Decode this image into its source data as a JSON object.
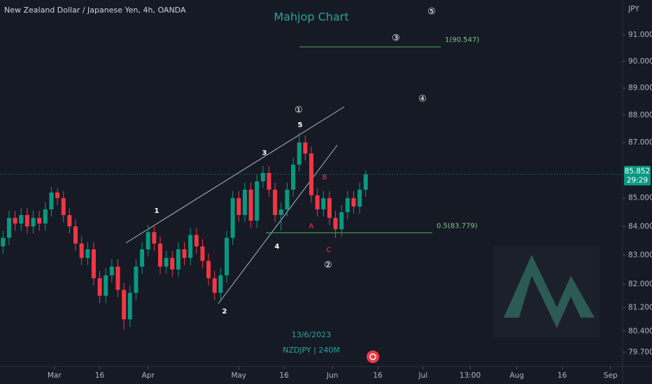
{
  "chart_data": {
    "type": "candlestick",
    "title": "New Zealand Dollar / Japanese Yen, 4h, OANDA",
    "subtitle": "Mahjop Chart",
    "y_axis_label": "JPY",
    "log_scale": true,
    "grid": false,
    "up_color": "#089981",
    "down_color": "#f23645",
    "x": [
      "2023-02-12",
      "2023-02-14",
      "2023-02-16",
      "2023-02-18",
      "2023-02-20",
      "2023-02-22",
      "2023-02-24",
      "2023-02-26",
      "2023-02-28",
      "2023-03-02",
      "2023-03-04",
      "2023-03-06",
      "2023-03-08",
      "2023-03-10",
      "2023-03-12",
      "2023-03-14",
      "2023-03-16",
      "2023-03-18",
      "2023-03-20",
      "2023-03-22",
      "2023-03-24",
      "2023-03-26",
      "2023-03-28",
      "2023-03-30",
      "2023-04-01",
      "2023-04-03",
      "2023-04-05",
      "2023-04-07",
      "2023-04-09",
      "2023-04-11",
      "2023-04-13",
      "2023-04-15",
      "2023-04-17",
      "2023-04-19",
      "2023-04-21",
      "2023-04-23",
      "2023-04-25",
      "2023-04-27",
      "2023-04-29",
      "2023-05-01",
      "2023-05-03",
      "2023-05-05",
      "2023-05-07",
      "2023-05-09",
      "2023-05-11",
      "2023-05-13",
      "2023-05-15",
      "2023-05-17",
      "2023-05-19",
      "2023-05-21",
      "2023-05-23",
      "2023-05-25",
      "2023-05-27",
      "2023-05-29",
      "2023-05-31",
      "2023-06-02",
      "2023-06-04",
      "2023-06-06",
      "2023-06-08",
      "2023-06-10",
      "2023-06-12"
    ],
    "open": [
      83.3,
      83.6,
      84.3,
      84.1,
      84.4,
      84.0,
      84.3,
      84.1,
      84.6,
      85.2,
      85.0,
      84.4,
      84.0,
      83.4,
      82.9,
      83.2,
      82.2,
      81.6,
      82.3,
      82.6,
      81.8,
      80.8,
      81.7,
      82.6,
      83.2,
      83.8,
      83.4,
      82.6,
      82.9,
      82.5,
      83.2,
      82.9,
      83.7,
      83.3,
      82.8,
      82.2,
      81.7,
      82.3,
      83.6,
      85.0,
      84.4,
      85.3,
      84.2,
      85.6,
      85.9,
      85.3,
      84.4,
      84.6,
      85.3,
      86.2,
      87.0,
      86.6,
      85.1,
      84.6,
      85.0,
      84.3,
      83.9,
      84.5,
      85.0,
      84.7,
      85.3
    ],
    "high": [
      83.85,
      84.55,
      84.55,
      84.65,
      84.65,
      84.55,
      84.55,
      84.85,
      85.4,
      85.35,
      85.25,
      84.65,
      84.25,
      83.65,
      83.45,
      83.45,
      82.45,
      82.55,
      82.85,
      82.85,
      82.05,
      81.95,
      82.85,
      83.45,
      84.05,
      84.05,
      83.65,
      83.15,
      83.15,
      83.45,
      83.45,
      83.95,
      83.95,
      83.55,
      83.05,
      82.45,
      82.55,
      83.85,
      85.25,
      85.25,
      85.55,
      85.55,
      85.85,
      86.15,
      86.15,
      85.55,
      84.85,
      85.55,
      86.45,
      87.35,
      87.25,
      86.85,
      85.35,
      85.25,
      85.25,
      84.55,
      84.75,
      85.25,
      85.25,
      85.55,
      86.0
    ],
    "low": [
      83.05,
      83.35,
      83.85,
      83.85,
      83.75,
      83.75,
      83.85,
      83.85,
      84.35,
      84.75,
      84.15,
      83.75,
      83.15,
      82.65,
      82.65,
      81.95,
      81.35,
      81.35,
      82.05,
      81.55,
      80.45,
      80.55,
      81.45,
      82.35,
      82.95,
      83.15,
      82.35,
      82.35,
      82.25,
      82.25,
      82.65,
      82.65,
      83.05,
      82.55,
      81.95,
      81.45,
      81.45,
      82.05,
      83.35,
      84.15,
      84.15,
      83.95,
      83.95,
      85.35,
      85.05,
      84.15,
      83.85,
      84.35,
      85.05,
      85.95,
      86.35,
      84.85,
      84.35,
      84.35,
      84.05,
      83.6,
      83.65,
      84.25,
      84.45,
      84.45,
      85.05
    ],
    "close": [
      83.6,
      84.3,
      84.1,
      84.4,
      84.0,
      84.3,
      84.1,
      84.6,
      85.2,
      85.0,
      84.4,
      84.0,
      83.4,
      82.9,
      83.2,
      82.2,
      81.6,
      82.3,
      82.6,
      81.8,
      80.8,
      81.7,
      82.6,
      83.2,
      83.8,
      83.4,
      82.6,
      82.9,
      82.5,
      83.2,
      82.9,
      83.7,
      83.3,
      82.8,
      82.2,
      81.7,
      82.3,
      83.6,
      85.0,
      84.4,
      85.3,
      84.2,
      85.6,
      85.9,
      85.3,
      84.4,
      84.6,
      85.3,
      86.2,
      87.0,
      86.6,
      85.1,
      84.6,
      85.0,
      84.3,
      83.9,
      84.5,
      85.0,
      84.7,
      85.3,
      85.85
    ],
    "xlim": [
      "2023-02-11",
      "2023-09-05"
    ],
    "xticks": [
      {
        "value": "2023-03-01",
        "label": "Mar"
      },
      {
        "value": "2023-03-16",
        "label": "16"
      },
      {
        "value": "2023-04-01",
        "label": "Apr"
      },
      {
        "value": "2023-05-01",
        "label": "May"
      },
      {
        "value": "2023-05-16",
        "label": "16"
      },
      {
        "value": "2023-06-01",
        "label": "Jun"
      },
      {
        "value": "2023-06-16",
        "label": "16"
      },
      {
        "value": "2023-07-01",
        "label": "Jul"
      },
      {
        "value": "2023-07-16T13:00",
        "label": "13:00"
      },
      {
        "value": "2023-08-01",
        "label": "Aug"
      },
      {
        "value": "2023-08-16",
        "label": "16"
      },
      {
        "value": "2023-09-01",
        "label": "Sep"
      }
    ],
    "ylim": [
      79.22,
      92.34
    ],
    "yticks": [
      {
        "value": 91,
        "label": "91.000"
      },
      {
        "value": 90,
        "label": "90.000"
      },
      {
        "value": 89,
        "label": "89.000"
      },
      {
        "value": 88,
        "label": "88.000"
      },
      {
        "value": 87,
        "label": "87.000"
      },
      {
        "value": 85,
        "label": "85.000"
      },
      {
        "value": 84,
        "label": "84.000"
      },
      {
        "value": 83,
        "label": "83.000"
      },
      {
        "value": 82,
        "label": "82.000"
      },
      {
        "value": 81.2,
        "label": "81.200"
      },
      {
        "value": 80.4,
        "label": "80.400"
      },
      {
        "value": 79.7,
        "label": "79.700"
      }
    ],
    "last_price": 85.852,
    "countdown": "29:29",
    "fib_levels": [
      {
        "value": 90.547,
        "label": "1(90.547)"
      },
      {
        "value": 83.779,
        "label": "0.5(83.779)"
      }
    ],
    "wave_labels": [
      "1",
      "2",
      "3",
      "4",
      "5",
      "A",
      "B",
      "C",
      "①",
      "②",
      "③",
      "④",
      "⑤"
    ],
    "annotations": [
      "13/6/2023",
      "NZDJPY | 240M"
    ]
  }
}
